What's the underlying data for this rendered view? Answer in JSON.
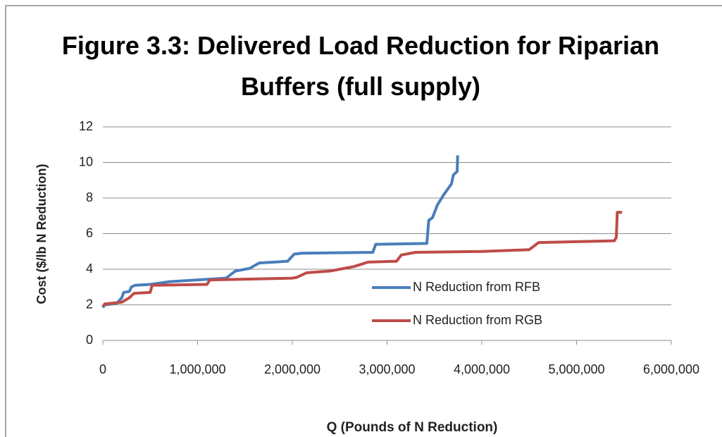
{
  "chart_data": {
    "type": "line",
    "title": "Figure 3.3: Delivered Load Reduction for Riparian Buffers (full supply)",
    "xlabel": "Q (Pounds of N Reduction)",
    "ylabel": "Cost ($/lb N Reduction)",
    "xlim": [
      0,
      6000000
    ],
    "ylim": [
      0,
      12
    ],
    "xticks": [
      0,
      {
        "value": 1000000,
        "label": "1,000,000"
      },
      {
        "value": 2000000,
        "label": "2,000,000"
      },
      {
        "value": 3000000,
        "label": "3,000,000"
      },
      {
        "value": 4000000,
        "label": "4,000,000"
      },
      {
        "value": 5000000,
        "label": "5,000,000"
      },
      {
        "value": 6000000,
        "label": "6,000,000"
      }
    ],
    "yticks": [
      0,
      2,
      4,
      6,
      8,
      10,
      12
    ],
    "grid": true,
    "legend": "inside-right",
    "series": [
      {
        "name": "N Reduction from RFB",
        "color": "#4a7ebb",
        "x": [
          0,
          20000,
          100000,
          150000,
          200000,
          220000,
          280000,
          300000,
          340000,
          500000,
          700000,
          1000000,
          1300000,
          1350000,
          1400000,
          1550000,
          1650000,
          1950000,
          2020000,
          2100000,
          2850000,
          2880000,
          3420000,
          3440000,
          3480000,
          3530000,
          3600000,
          3680000,
          3700000,
          3740000,
          3745000
        ],
        "values": [
          1.85,
          2.0,
          2.05,
          2.1,
          2.4,
          2.7,
          2.75,
          3.0,
          3.1,
          3.15,
          3.3,
          3.4,
          3.5,
          3.7,
          3.9,
          4.05,
          4.35,
          4.45,
          4.85,
          4.9,
          4.95,
          5.4,
          5.45,
          6.75,
          6.9,
          7.6,
          8.2,
          8.8,
          9.3,
          9.5,
          10.4
        ]
      },
      {
        "name": "N Reduction from RGB",
        "color": "#be4b48",
        "x": [
          0,
          20000,
          200000,
          280000,
          330000,
          500000,
          520000,
          1100000,
          1130000,
          2000000,
          2050000,
          2150000,
          2400000,
          2650000,
          2800000,
          3100000,
          3150000,
          3300000,
          4000000,
          4500000,
          4600000,
          5400000,
          5420000,
          5430000,
          5480000
        ],
        "values": [
          1.9,
          2.05,
          2.15,
          2.4,
          2.65,
          2.7,
          3.1,
          3.15,
          3.4,
          3.5,
          3.55,
          3.8,
          3.9,
          4.15,
          4.4,
          4.45,
          4.8,
          4.95,
          5.0,
          5.1,
          5.5,
          5.6,
          5.8,
          7.2,
          7.2
        ]
      }
    ]
  }
}
